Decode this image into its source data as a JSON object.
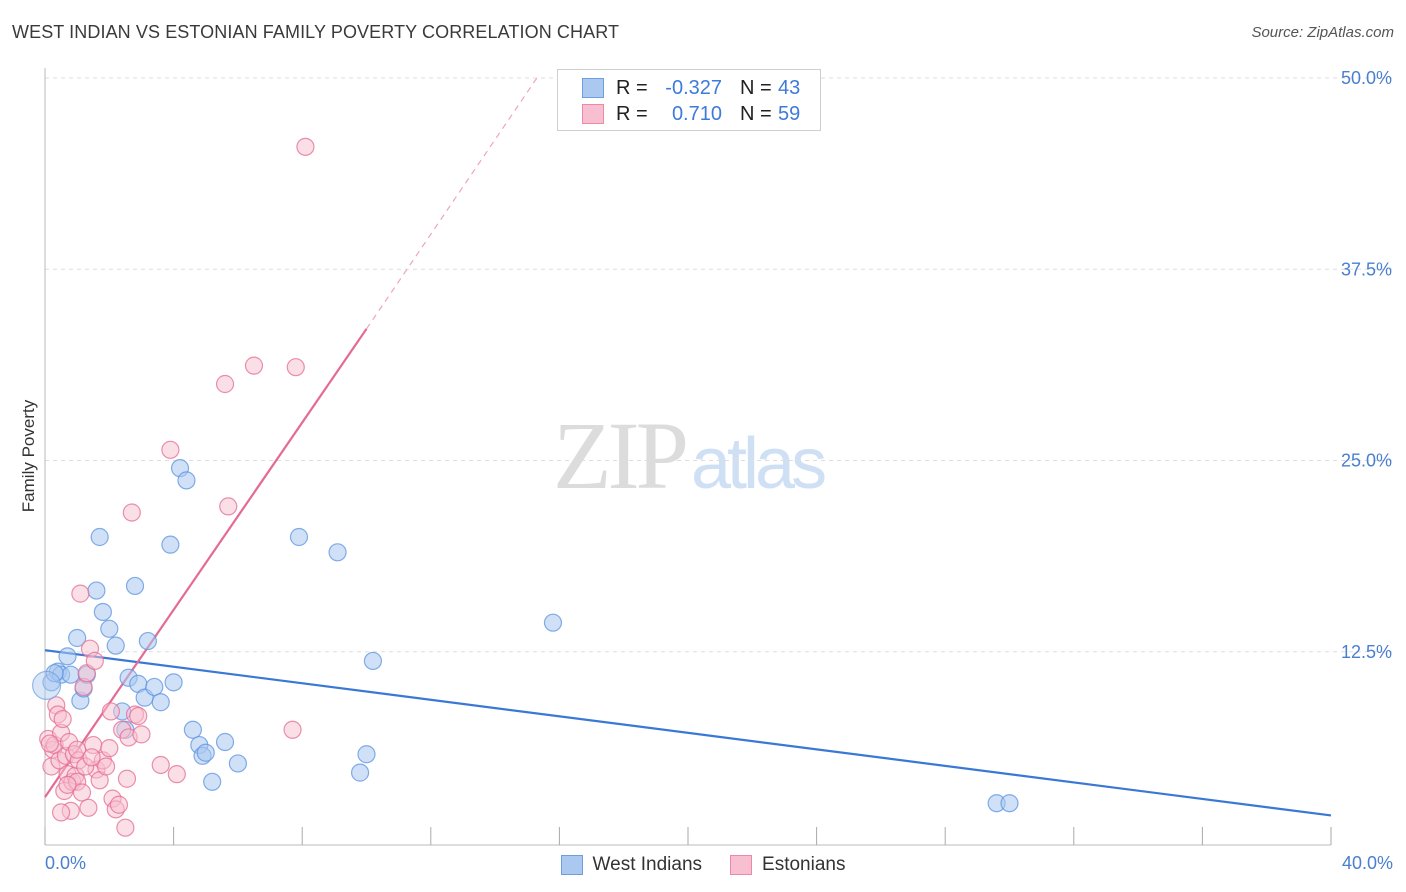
{
  "title": "WEST INDIAN VS ESTONIAN FAMILY POVERTY CORRELATION CHART",
  "source": "Source: ZipAtlas.com",
  "watermark": {
    "zip": "ZIP",
    "atlas": "atlas"
  },
  "legend_stats": [
    {
      "r_label": "R =",
      "r_value": "-0.327",
      "n_label": "N =",
      "n_value": "43",
      "color": "#aac8f0",
      "border": "#6e9fdc"
    },
    {
      "r_label": "R =",
      "r_value": "0.710",
      "n_label": "N =",
      "n_value": "59",
      "color": "#f7bfd0",
      "border": "#e98aa8"
    }
  ],
  "chart_data": {
    "type": "scatter",
    "title": "WEST INDIAN VS ESTONIAN FAMILY POVERTY CORRELATION CHART",
    "xlabel": "",
    "ylabel": "Family Poverty",
    "xlim": [
      0,
      40
    ],
    "ylim": [
      0,
      50
    ],
    "x_tick_labels": [
      "0.0%",
      "40.0%"
    ],
    "y_ticks": [
      12.5,
      25.0,
      37.5,
      50.0
    ],
    "y_tick_labels": [
      "12.5%",
      "25.0%",
      "37.5%",
      "50.0%"
    ],
    "grid": true,
    "legend": "bottom-center",
    "series": [
      {
        "name": "West Indians",
        "color": "#5b93e0",
        "fill": "#aac8f0",
        "trend": {
          "x0": 0,
          "y0": 12.6,
          "x1": 40,
          "y1": 1.8
        },
        "points": [
          [
            0.2,
            10.5
          ],
          [
            0.4,
            11.2
          ],
          [
            0.5,
            11.0
          ],
          [
            0.7,
            12.2
          ],
          [
            0.8,
            11.0
          ],
          [
            1.0,
            13.4
          ],
          [
            1.1,
            9.3
          ],
          [
            1.2,
            10.1
          ],
          [
            1.3,
            11.0
          ],
          [
            1.6,
            16.5
          ],
          [
            1.7,
            20.0
          ],
          [
            1.8,
            15.1
          ],
          [
            2.0,
            14.0
          ],
          [
            2.2,
            12.9
          ],
          [
            2.4,
            8.6
          ],
          [
            2.5,
            7.4
          ],
          [
            2.6,
            10.8
          ],
          [
            2.8,
            16.8
          ],
          [
            2.9,
            10.4
          ],
          [
            3.1,
            9.5
          ],
          [
            3.2,
            13.2
          ],
          [
            3.4,
            10.2
          ],
          [
            3.6,
            9.2
          ],
          [
            3.9,
            19.5
          ],
          [
            4.0,
            10.5
          ],
          [
            4.2,
            24.5
          ],
          [
            4.4,
            23.7
          ],
          [
            4.6,
            7.4
          ],
          [
            4.8,
            6.4
          ],
          [
            4.9,
            5.7
          ],
          [
            5.0,
            5.9
          ],
          [
            5.2,
            4.0
          ],
          [
            5.6,
            6.6
          ],
          [
            6.0,
            5.2
          ],
          [
            7.9,
            20.0
          ],
          [
            9.1,
            19.0
          ],
          [
            9.8,
            4.6
          ],
          [
            10.0,
            5.8
          ],
          [
            10.2,
            11.9
          ],
          [
            15.8,
            14.4
          ],
          [
            29.6,
            2.6
          ],
          [
            30.0,
            2.6
          ],
          [
            0.3,
            11.1
          ]
        ]
      },
      {
        "name": "Estonians",
        "color": "#e46b93",
        "fill": "#f7bfd0",
        "trend": {
          "x0": 0,
          "y0": 3.0,
          "x1": 10.0,
          "y1": 33.6,
          "dash_x1": 15.3,
          "dash_y1": 50.0
        },
        "points": [
          [
            0.1,
            6.8
          ],
          [
            0.2,
            5.0
          ],
          [
            0.25,
            6.1
          ],
          [
            0.3,
            6.4
          ],
          [
            0.35,
            9.0
          ],
          [
            0.4,
            8.4
          ],
          [
            0.45,
            5.4
          ],
          [
            0.5,
            7.2
          ],
          [
            0.55,
            8.1
          ],
          [
            0.6,
            3.4
          ],
          [
            0.65,
            5.7
          ],
          [
            0.7,
            4.5
          ],
          [
            0.75,
            6.6
          ],
          [
            0.8,
            2.1
          ],
          [
            0.85,
            4.0
          ],
          [
            0.9,
            5.8
          ],
          [
            0.95,
            4.4
          ],
          [
            1.0,
            4.0
          ],
          [
            1.05,
            5.4
          ],
          [
            1.1,
            16.3
          ],
          [
            1.15,
            3.3
          ],
          [
            1.2,
            10.2
          ],
          [
            1.3,
            11.1
          ],
          [
            1.35,
            2.3
          ],
          [
            1.4,
            12.7
          ],
          [
            1.5,
            6.4
          ],
          [
            1.55,
            11.9
          ],
          [
            1.6,
            4.8
          ],
          [
            1.7,
            4.1
          ],
          [
            1.8,
            5.4
          ],
          [
            1.9,
            5.0
          ],
          [
            2.0,
            6.2
          ],
          [
            2.05,
            8.6
          ],
          [
            2.1,
            2.9
          ],
          [
            2.2,
            2.2
          ],
          [
            2.3,
            2.5
          ],
          [
            2.4,
            7.4
          ],
          [
            2.5,
            1.0
          ],
          [
            2.55,
            4.2
          ],
          [
            2.6,
            6.9
          ],
          [
            2.7,
            21.6
          ],
          [
            2.8,
            8.4
          ],
          [
            2.9,
            8.3
          ],
          [
            3.0,
            7.1
          ],
          [
            3.6,
            5.1
          ],
          [
            3.9,
            25.7
          ],
          [
            4.1,
            4.5
          ],
          [
            5.6,
            30.0
          ],
          [
            5.7,
            22.0
          ],
          [
            6.5,
            31.2
          ],
          [
            7.7,
            7.4
          ],
          [
            7.8,
            31.1
          ],
          [
            8.1,
            45.5
          ],
          [
            0.15,
            6.5
          ],
          [
            0.5,
            2.0
          ],
          [
            0.7,
            3.8
          ],
          [
            1.0,
            6.1
          ],
          [
            1.25,
            5.0
          ],
          [
            1.45,
            5.6
          ]
        ]
      }
    ]
  }
}
